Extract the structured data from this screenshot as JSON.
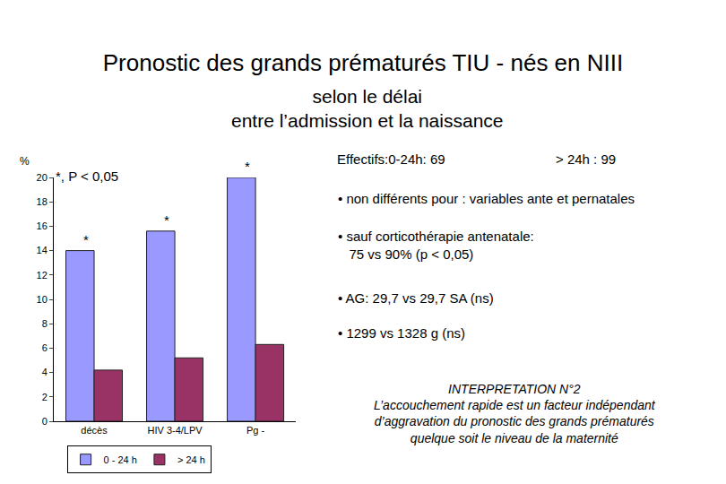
{
  "chart_data": {
    "type": "bar",
    "title": "Pronostic des grands prématurés TIU - nés en NIII",
    "subtitle": [
      "selon le délai",
      "entre l’admission et la naissance"
    ],
    "y_label": "%",
    "categories": [
      "décès",
      "HIV 3-4/LPV",
      "Pg -"
    ],
    "series": [
      {
        "name": "0 - 24 h",
        "color": "#9999ff",
        "values": [
          14,
          15.6,
          20
        ]
      },
      {
        "name": "> 24 h",
        "color": "#993366",
        "values": [
          4.2,
          5.2,
          6.3
        ]
      }
    ],
    "ylim": [
      0,
      20
    ],
    "yticks": [
      0,
      2,
      4,
      6,
      8,
      10,
      12,
      14,
      16,
      18,
      20
    ],
    "grid": false,
    "legend": "bottom",
    "significance_note": "*, P < 0,05",
    "significance_marks": [
      "*",
      "*",
      "*"
    ],
    "effectifs": [
      "Effectifs:0-24h: 69",
      "> 24h : 99"
    ],
    "bullets": [
      [
        "• non différents pour : variables ante et pernatales"
      ],
      [
        "• sauf corticothérapie antenatale:",
        "75 vs 90% (p < 0,05)"
      ],
      [
        "• AG: 29,7 vs 29,7 SA (ns)"
      ],
      [
        "• 1299 vs 1328 g (ns)"
      ]
    ],
    "interpretation": {
      "title": "INTERPRETATION N°2",
      "lines": [
        "L’accouchement rapide est un facteur indépendant",
        "d’aggravation du pronostic des grands prématurés",
        "quelque soit le niveau de la maternité"
      ]
    }
  }
}
